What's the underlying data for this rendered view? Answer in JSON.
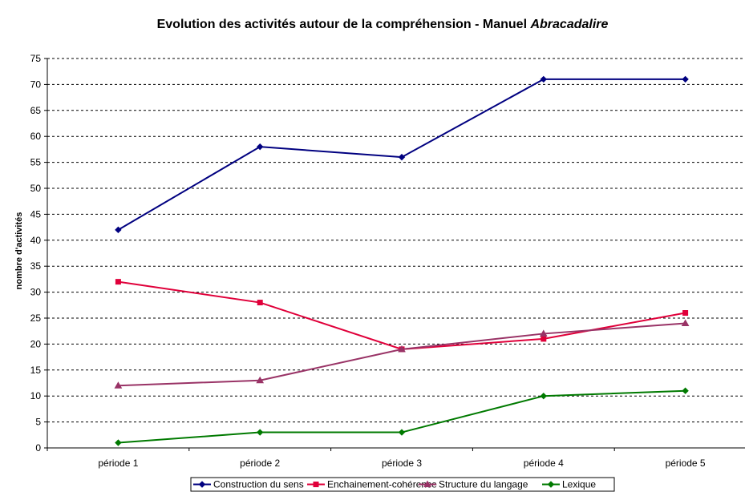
{
  "chart_data": {
    "type": "line",
    "title_part1": "Evolution des activités autour de la compréhension - Manuel ",
    "title_part2": "Abracadalire",
    "title": "Evolution des activités autour de la compréhension - Manuel Abracadalire",
    "xlabel": "",
    "ylabel": "nombre d'activités",
    "categories": [
      "période 1",
      "période 2",
      "période 3",
      "période 4",
      "période 5"
    ],
    "ylim": [
      0,
      75
    ],
    "yticks": [
      0,
      5,
      10,
      15,
      20,
      25,
      30,
      35,
      40,
      45,
      50,
      55,
      60,
      65,
      70,
      75
    ],
    "grid": "horizontal dashed",
    "legend_position": "bottom",
    "series": [
      {
        "name": "Construction du sens",
        "values": [
          42,
          58,
          56,
          71,
          71
        ],
        "color": "#000080",
        "marker": "diamond"
      },
      {
        "name": "Enchainement-cohérence",
        "values": [
          32,
          28,
          19,
          21,
          26
        ],
        "color": "#e0003a",
        "marker": "square"
      },
      {
        "name": "Structure du langage",
        "values": [
          12,
          13,
          19,
          22,
          24
        ],
        "color": "#993366",
        "marker": "triangle"
      },
      {
        "name": "Lexique",
        "values": [
          1,
          3,
          3,
          10,
          11
        ],
        "color": "#007a00",
        "marker": "diamond"
      }
    ]
  }
}
